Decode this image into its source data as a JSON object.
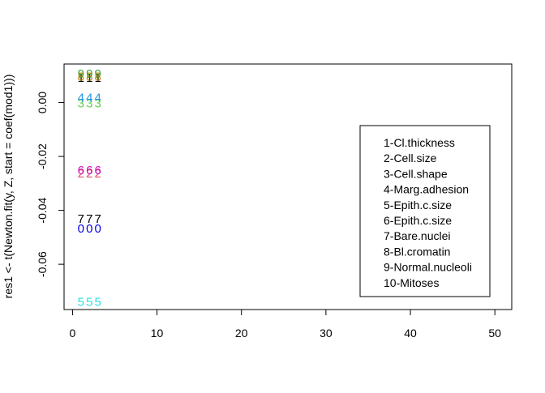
{
  "chart_data": {
    "type": "scatter",
    "title": "",
    "xlabel": "",
    "ylabel": "res1 <- t(Newton.fit(y, Z, start = coef(mod1)))",
    "xlim": [
      -1,
      52
    ],
    "ylim": [
      -0.0768,
      0.0143
    ],
    "x_ticks": [
      0,
      10,
      20,
      30,
      40,
      50
    ],
    "y_ticks": [
      0.0,
      -0.02,
      -0.04,
      -0.06
    ],
    "y_tick_labels": [
      "0.00",
      "-0.02",
      "-0.04",
      "-0.06"
    ],
    "legend_position": "right",
    "legend_entries": [
      "1-Cl.thickness",
      "2-Cell.size",
      "3-Cell.shape",
      "4-Marg.adhesion",
      "5-Epith.c.size",
      "6-Epith.c.size",
      "7-Bare.nuclei",
      "8-Bl.cromatin",
      "9-Normal.nucleoli",
      "10-Mitoses"
    ],
    "series": [
      {
        "symbol": "1",
        "color": "#000000",
        "x": [
          1,
          2,
          3
        ],
        "y": [
          0.0094,
          0.0094,
          0.0094
        ]
      },
      {
        "symbol": "2",
        "color": "#DF536B",
        "x": [
          1,
          2,
          3
        ],
        "y": [
          -0.0262,
          -0.0262,
          -0.0262
        ]
      },
      {
        "symbol": "3",
        "color": "#61D04F",
        "x": [
          1,
          2,
          3
        ],
        "y": [
          -0.0002,
          -0.0002,
          -0.0002
        ]
      },
      {
        "symbol": "4",
        "color": "#2297E6",
        "x": [
          1,
          2,
          3
        ],
        "y": [
          0.002,
          0.002,
          0.002
        ]
      },
      {
        "symbol": "5",
        "color": "#28E2E5",
        "x": [
          1,
          2,
          3
        ],
        "y": [
          -0.0738,
          -0.0738,
          -0.0738
        ]
      },
      {
        "symbol": "6",
        "color": "#CD0BBC",
        "x": [
          1,
          2,
          3
        ],
        "y": [
          -0.025,
          -0.025,
          -0.025
        ]
      },
      {
        "symbol": "7",
        "color": "#000000",
        "x": [
          1,
          2,
          3
        ],
        "y": [
          -0.043,
          -0.043,
          -0.043
        ]
      },
      {
        "symbol": "8",
        "color": "#CC8800",
        "x": [
          1,
          2,
          3
        ],
        "y": [
          0.0098,
          0.0098,
          0.0098
        ]
      },
      {
        "symbol": "9",
        "color": "#3CA03C",
        "x": [
          1,
          2,
          3
        ],
        "y": [
          0.0108,
          0.0108,
          0.0108
        ]
      },
      {
        "symbol": "0",
        "color": "#0000EE",
        "x": [
          1,
          2,
          3
        ],
        "y": [
          -0.0466,
          -0.0466,
          -0.0466
        ]
      }
    ]
  }
}
